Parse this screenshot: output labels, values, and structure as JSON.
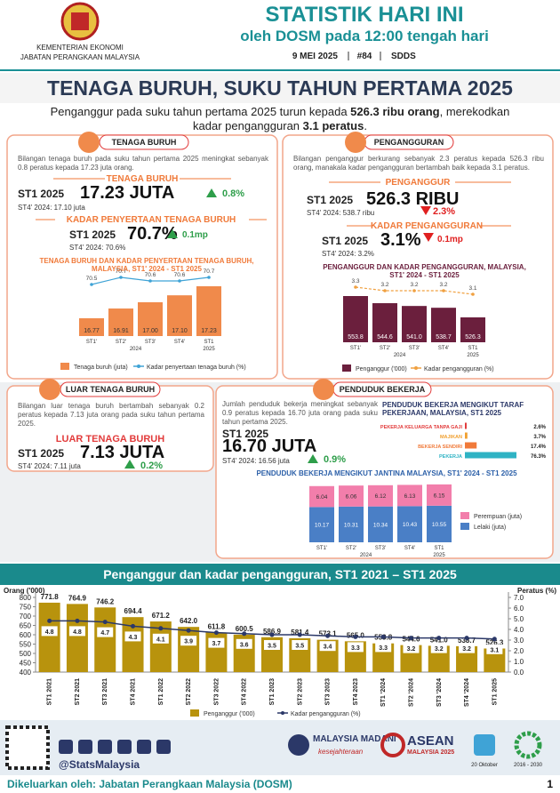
{
  "header": {
    "ministry": [
      "KEMENTERIAN EKONOMI",
      "JABATAN PERANGKAAN MALAYSIA"
    ],
    "title": "STATISTIK HARI INI",
    "subtitle": "oleh DOSM pada 12:00 tengah hari",
    "date": "9 MEI 2025",
    "issue": "#84",
    "tag": "SDDS"
  },
  "headline": "TENAGA BURUH, SUKU TAHUN PERTAMA 2025",
  "summary": [
    "Penganggur pada suku tahun pertama 2025 turun kepada ",
    "526.3 ribu orang",
    ", merekodkan kadar pengangguran ",
    "3.1 peratus",
    "."
  ],
  "panels": {
    "labour_force": {
      "title": "TENAGA BURUH",
      "text": "Bilangan tenaga buruh pada suku tahun pertama 2025 meningkat sebanyak 0.8 peratus kepada 17.23 juta orang.",
      "kpis": [
        {
          "label": "TENAGA BURUH",
          "period": "ST1 2025",
          "value": "17.23 JUTA",
          "change": "0.8%",
          "previous": "ST4' 2024: 17.10 juta"
        },
        {
          "label": "KADAR PENYERTAAN TENAGA BURUH",
          "period": "ST1 2025",
          "value": "70.7%",
          "change": "0.1mp",
          "previous": "ST4' 2024: 70.6%"
        }
      ]
    },
    "unemployed": {
      "title": "PENGANGGURAN",
      "text": "Bilangan penganggur berkurang sebanyak 2.3 peratus kepada 526.3 ribu orang, manakala kadar pengangguran bertambah baik kepada 3.1 peratus.",
      "kpis": [
        {
          "label": "PENGANGGUR",
          "period": "ST1 2025",
          "value": "526.3 RIBU",
          "change": "2.3%",
          "previous": "ST4' 2024: 538.7 ribu"
        },
        {
          "label": "KADAR PENGANGGURAN",
          "period": "ST1 2025",
          "value": "3.1%",
          "change": "0.1mp",
          "previous": "ST4' 2024: 3.2%"
        }
      ]
    },
    "outside_labour_force": {
      "title": "LUAR TENAGA BURUH",
      "text": "Bilangan luar tenaga buruh bertambah sebanyak 0.2 peratus kepada 7.13 juta orang pada suku tahun pertama 2025.",
      "kpis": [
        {
          "label": "LUAR TENAGA BURUH",
          "period": "ST1 2025",
          "value": "7.13 JUTA",
          "change": "0.2%",
          "previous": "ST4' 2024: 7.11 juta"
        }
      ]
    },
    "employed": {
      "title": "PENDUDUK BEKERJA",
      "text": "Jumlah penduduk bekerja meningkat sebanyak 0.9 peratus kepada 16.70 juta orang pada suku tahun pertama 2025.",
      "kpis": [
        {
          "period": "ST1 2025",
          "value": "16.70 JUTA",
          "change": "0.9%",
          "previous": "ST4' 2024: 16.56 juta"
        }
      ]
    }
  },
  "chart_data": [
    {
      "type": "combo",
      "title": "TENAGA BURUH DAN KADAR PENYERTAAN TENAGA BURUH, MALAYSIA, ST1' 2024 - ST1 2025",
      "categories": [
        "ST1'",
        "ST2'",
        "ST3'",
        "ST4'",
        "ST1"
      ],
      "year_labels": [
        "2024",
        "2025"
      ],
      "series": [
        {
          "name": "Tenaga buruh (juta)",
          "type": "bar",
          "color": "#f08a4b",
          "values": [
            16.77,
            16.91,
            17.0,
            17.1,
            17.23
          ],
          "value_labels": [
            "16.77",
            "16.91",
            "17.00",
            "17.10",
            "17.23"
          ]
        },
        {
          "name": "Kadar penyertaan tenaga buruh (%)",
          "type": "line",
          "color": "#3fa3d6",
          "values": [
            70.5,
            70.7,
            70.6,
            70.6,
            70.7
          ]
        }
      ]
    },
    {
      "type": "combo",
      "title": "PENGANGGUR DAN KADAR PENGANGGURAN, MALAYSIA, ST1' 2024 - ST1 2025",
      "categories": [
        "ST1'",
        "ST2'",
        "ST3'",
        "ST4'",
        "ST1"
      ],
      "year_labels": [
        "2024",
        "2025"
      ],
      "series": [
        {
          "name": "Penganggur ('000)",
          "type": "bar",
          "color": "#6b1f3d",
          "values": [
            553.8,
            544.6,
            541.0,
            538.7,
            526.3
          ],
          "value_labels": [
            "553.8",
            "544.6",
            "541.0",
            "538.7",
            "526.3"
          ]
        },
        {
          "name": "Kadar pengangguran (%)",
          "type": "line",
          "color": "#f0a040",
          "values": [
            3.3,
            3.2,
            3.2,
            3.2,
            3.1
          ]
        }
      ]
    },
    {
      "type": "hbar",
      "title": "PENDUDUK BEKERJA MENGIKUT TARAF PEKERJAAN, MALAYSIA, ST1 2025",
      "categories": [
        "PEKERJA KELUARGA TANPA GAJI",
        "MAJIKAN",
        "BEKERJA SENDIRI",
        "PEKERJA"
      ],
      "values": [
        2.6,
        3.7,
        17.4,
        76.3
      ],
      "value_labels": [
        "2.6%",
        "3.7%",
        "17.4%",
        "76.3%"
      ],
      "colors": [
        "#e23b3b",
        "#f0a030",
        "#f07a3a",
        "#2fb3c4"
      ]
    },
    {
      "type": "stacked",
      "title": "PENDUDUK BEKERJA MENGIKUT JANTINA MALAYSIA, ST1' 2024 - ST1 2025",
      "categories": [
        "ST1'",
        "ST2'",
        "ST3'",
        "ST4'",
        "ST1"
      ],
      "year_labels": [
        "2024",
        "2025"
      ],
      "series": [
        {
          "name": "Perempuan (juta)",
          "color": "#f27eab",
          "values": [
            6.04,
            6.06,
            6.12,
            6.13,
            6.15
          ]
        },
        {
          "name": "Lelaki (juta)",
          "color": "#4a7fc6",
          "values": [
            10.17,
            10.31,
            10.34,
            10.43,
            10.55
          ]
        }
      ]
    },
    {
      "type": "combo",
      "title": "Penganggur dan kadar pengangguran, ST1 2021 – ST1 2025",
      "ylabel": "Orang ('000)",
      "y2label": "Peratus (%)",
      "categories": [
        "ST1 2021",
        "ST2 2021",
        "ST3 2021",
        "ST4 2021",
        "ST1 2022",
        "ST2 2022",
        "ST3 2022",
        "ST4 2022",
        "ST1 2023",
        "ST2 2023",
        "ST3 2023",
        "ST4 2023",
        "ST1 '2024",
        "ST2 '2024",
        "ST3 '2024",
        "ST4 '2024",
        "ST1 2025"
      ],
      "ylim": [
        400,
        800
      ],
      "yticks": [
        400,
        450,
        500,
        550,
        600,
        650,
        700,
        750,
        800
      ],
      "y2lim": [
        0,
        7
      ],
      "y2ticks": [
        {
          "value": 0,
          "label": "0.0"
        },
        {
          "value": 1,
          "label": "1.0"
        },
        {
          "value": 2,
          "label": "2.0"
        },
        {
          "value": 3,
          "label": "3.0"
        },
        {
          "value": 4,
          "label": "4.0"
        },
        {
          "value": 5,
          "label": "5.0"
        },
        {
          "value": 6,
          "label": "6.0"
        },
        {
          "value": 7,
          "label": "7.0"
        }
      ],
      "series": [
        {
          "name": "Penganggur ('000)",
          "type": "bar",
          "color": "#b8930d",
          "values": [
            771.8,
            764.9,
            746.2,
            694.4,
            671.2,
            642.0,
            611.8,
            600.5,
            586.9,
            581.4,
            573.1,
            565.0,
            553.8,
            544.6,
            541.0,
            538.7,
            526.3
          ],
          "value_labels": [
            "771.8",
            "764.9",
            "746.2",
            "694.4",
            "671.2",
            "642.0",
            "611.8",
            "600.5",
            "586.9",
            "581.4",
            "573.1",
            "565.0",
            "553.8",
            "544.6",
            "541.0",
            "538.7",
            "526.3"
          ]
        },
        {
          "name": "Kadar pengangguran (%)",
          "type": "line",
          "axis": "y2",
          "color": "#2b3868",
          "values": [
            4.8,
            4.8,
            4.7,
            4.3,
            4.1,
            3.9,
            3.7,
            3.6,
            3.5,
            3.5,
            3.4,
            3.3,
            3.3,
            3.2,
            3.2,
            3.2,
            3.1
          ]
        }
      ]
    }
  ],
  "footer": {
    "handle": "@StatsMalaysia",
    "logos": [
      "MALAYSIA MADANI",
      "kesejahteraan",
      "ASEAN",
      "MALAYSIA 2025",
      "20 Oktober",
      "2016 - 2030"
    ],
    "issued_by": "Dikeluarkan oleh: Jabatan Perangkaan Malaysia (DOSM)",
    "page": "1"
  }
}
